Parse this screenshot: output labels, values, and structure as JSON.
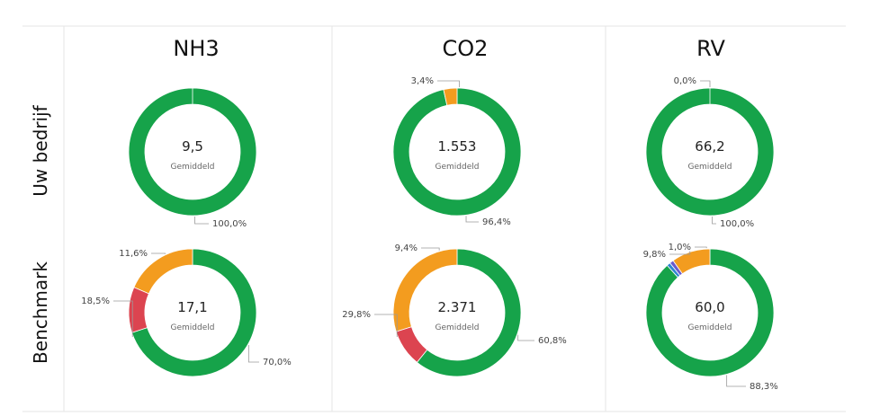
{
  "colors": {
    "green": "#16A34A",
    "orange": "#F39C1F",
    "red": "#DC4450",
    "purple": "#6A5ACD",
    "blue": "#2E86D1",
    "grid": "#E6E6E6"
  },
  "columns": [
    "NH3",
    "CO2",
    "RV"
  ],
  "rows": [
    "Uw bedrijf",
    "Benchmark"
  ],
  "chart_data": [
    {
      "type": "pie",
      "column": "NH3",
      "row": "Uw bedrijf",
      "center_value": "9,5",
      "center_label": "Gemiddeld",
      "slices": [
        {
          "value": 100.0,
          "color": "green",
          "label": "100,0%"
        }
      ]
    },
    {
      "type": "pie",
      "column": "CO2",
      "row": "Uw bedrijf",
      "center_value": "1.553",
      "center_label": "Gemiddeld",
      "slices": [
        {
          "value": 96.4,
          "color": "green",
          "label": "96,4%"
        },
        {
          "value": 3.4,
          "color": "orange",
          "label": "3,4%"
        }
      ]
    },
    {
      "type": "pie",
      "column": "RV",
      "row": "Uw bedrijf",
      "center_value": "66,2",
      "center_label": "Gemiddeld",
      "slices": [
        {
          "value": 100.0,
          "color": "green",
          "label": "100,0%"
        },
        {
          "value": 0.0,
          "color": "orange",
          "label": "0,0%"
        }
      ]
    },
    {
      "type": "pie",
      "column": "NH3",
      "row": "Benchmark",
      "center_value": "17,1",
      "center_label": "Gemiddeld",
      "slices": [
        {
          "value": 70.0,
          "color": "green",
          "label": "70,0%"
        },
        {
          "value": 18.5,
          "color": "orange",
          "label": "18,5%"
        },
        {
          "value": 11.6,
          "color": "red",
          "label": "11,6%"
        }
      ]
    },
    {
      "type": "pie",
      "column": "CO2",
      "row": "Benchmark",
      "center_value": "2.371",
      "center_label": "Gemiddeld",
      "slices": [
        {
          "value": 60.8,
          "color": "green",
          "label": "60,8%"
        },
        {
          "value": 29.8,
          "color": "orange",
          "label": "29,8%"
        },
        {
          "value": 9.4,
          "color": "red",
          "label": "9,4%"
        }
      ]
    },
    {
      "type": "pie",
      "column": "RV",
      "row": "Benchmark",
      "center_value": "60,0",
      "center_label": "Gemiddeld",
      "slices": [
        {
          "value": 88.3,
          "color": "green",
          "label": "88,3%"
        },
        {
          "value": 9.8,
          "color": "orange",
          "label": "9,8%"
        },
        {
          "value": 1.0,
          "color": "purple",
          "label": "1,0%"
        },
        {
          "value": 0.9,
          "color": "blue",
          "label": ""
        }
      ]
    }
  ]
}
